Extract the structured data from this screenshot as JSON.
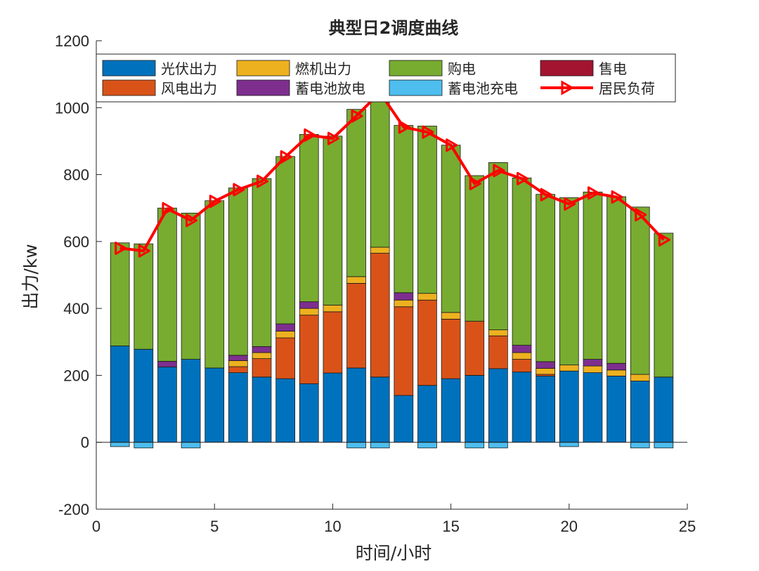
{
  "chart_data": {
    "type": "bar",
    "stacked": true,
    "title": "典型日2调度曲线",
    "xlabel": "时间/小时",
    "ylabel": "出力/kw",
    "xlim": [
      0,
      25
    ],
    "ylim": [
      -200,
      1200
    ],
    "xticks": [
      0,
      5,
      10,
      15,
      20,
      25
    ],
    "yticks": [
      -200,
      0,
      200,
      400,
      600,
      800,
      1000,
      1200
    ],
    "legend_position": "top",
    "hours": [
      1,
      2,
      3,
      4,
      5,
      6,
      7,
      8,
      9,
      10,
      11,
      12,
      13,
      14,
      15,
      16,
      17,
      18,
      19,
      20,
      21,
      22,
      23,
      24
    ],
    "series": [
      {
        "name": "光伏出力",
        "color": "#0072BD",
        "values": [
          288,
          278,
          225,
          248,
          222,
          208,
          195,
          190,
          175,
          207,
          222,
          195,
          140,
          170,
          190,
          200,
          220,
          210,
          198,
          213,
          208,
          198,
          183,
          195
        ]
      },
      {
        "name": "风电出力",
        "color": "#D95319",
        "values": [
          0,
          0,
          0,
          0,
          0,
          18,
          55,
          122,
          205,
          183,
          253,
          370,
          265,
          255,
          178,
          162,
          98,
          38,
          5,
          0,
          0,
          0,
          0,
          0
        ]
      },
      {
        "name": "燃机出力",
        "color": "#EDB120",
        "values": [
          0,
          0,
          0,
          0,
          0,
          18,
          18,
          20,
          20,
          20,
          20,
          18,
          20,
          20,
          20,
          0,
          18,
          20,
          18,
          18,
          20,
          18,
          20,
          0
        ]
      },
      {
        "name": "蓄电池放电",
        "color": "#7E2F8E",
        "values": [
          0,
          0,
          17,
          0,
          0,
          16,
          18,
          22,
          20,
          0,
          0,
          0,
          22,
          0,
          0,
          0,
          0,
          22,
          20,
          0,
          20,
          20,
          0,
          0
        ]
      },
      {
        "name": "购电",
        "color": "#77AC30",
        "values": [
          308,
          315,
          458,
          437,
          500,
          500,
          502,
          500,
          500,
          505,
          500,
          475,
          500,
          500,
          500,
          435,
          500,
          500,
          500,
          500,
          500,
          498,
          500,
          430
        ]
      },
      {
        "name": "售电",
        "color": "#A2142F",
        "values": [
          0,
          0,
          0,
          0,
          0,
          0,
          0,
          0,
          0,
          0,
          0,
          0,
          0,
          0,
          0,
          0,
          0,
          0,
          0,
          0,
          0,
          0,
          0,
          0
        ]
      },
      {
        "name": "蓄电池充电",
        "color": "#4DBEEE",
        "values": [
          -13,
          -17,
          0,
          -17,
          0,
          0,
          0,
          0,
          0,
          0,
          -17,
          -17,
          0,
          -17,
          0,
          -17,
          -17,
          0,
          0,
          -13,
          0,
          0,
          -17,
          -17
        ]
      }
    ],
    "line": {
      "name": "居民负荷",
      "color": "#FF0000",
      "values": [
        580,
        572,
        698,
        663,
        720,
        755,
        780,
        853,
        918,
        908,
        975,
        1045,
        942,
        927,
        888,
        773,
        812,
        788,
        740,
        712,
        745,
        733,
        680,
        605
      ]
    },
    "legend_order": [
      "光伏出力",
      "燃机出力",
      "购电",
      "售电",
      "风电出力",
      "蓄电池放电",
      "蓄电池充电",
      "居民负荷"
    ]
  }
}
